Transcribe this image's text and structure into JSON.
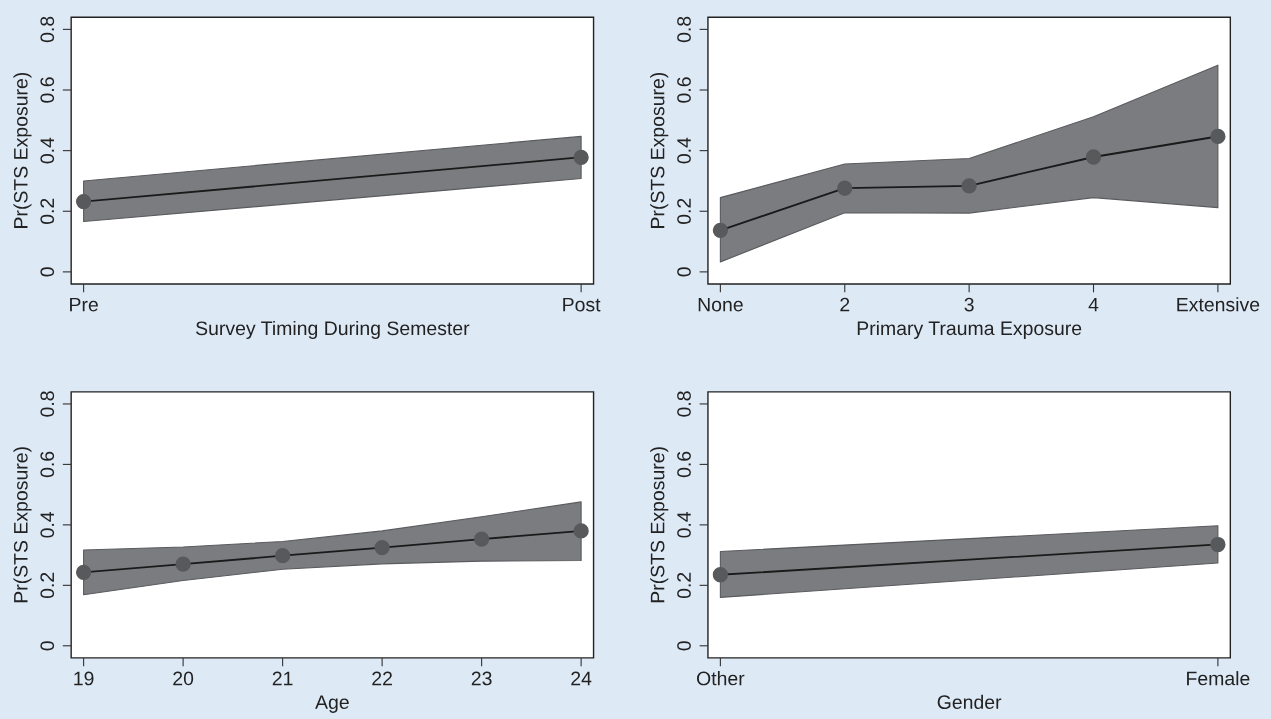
{
  "chart_data": [
    {
      "type": "line",
      "xlabel": "Survey Timing During Semester",
      "ylabel": "Pr(STS Exposure)",
      "categories": [
        "Pre",
        "Post"
      ],
      "ylim": [
        -0.04,
        0.84
      ],
      "yticks": [
        0,
        0.2,
        0.4,
        0.6,
        0.8
      ],
      "marker": "circle",
      "grid": false,
      "legend": false,
      "series": [
        {
          "color": "#58595b",
          "values": [
            0.232,
            0.378
          ],
          "lower": [
            0.166,
            0.308
          ],
          "upper": [
            0.3,
            0.447
          ]
        }
      ]
    },
    {
      "type": "line",
      "xlabel": "Primary Trauma Exposure",
      "ylabel": "Pr(STS Exposure)",
      "categories": [
        "None",
        "2",
        "3",
        "4",
        "Extensive"
      ],
      "ylim": [
        -0.04,
        0.84
      ],
      "yticks": [
        0,
        0.2,
        0.4,
        0.6,
        0.8
      ],
      "marker": "circle",
      "grid": false,
      "legend": false,
      "series": [
        {
          "color": "#58595b",
          "values": [
            0.137,
            0.276,
            0.284,
            0.379,
            0.447
          ],
          "lower": [
            0.033,
            0.195,
            0.194,
            0.245,
            0.212
          ],
          "upper": [
            0.245,
            0.356,
            0.374,
            0.512,
            0.682
          ]
        }
      ]
    },
    {
      "type": "line",
      "xlabel": "Age",
      "ylabel": "Pr(STS Exposure)",
      "x": [
        19,
        20,
        21,
        22,
        23,
        24
      ],
      "xlim": [
        18.875,
        24.125
      ],
      "xticks": [
        19,
        20,
        21,
        22,
        23,
        24
      ],
      "ylim": [
        -0.04,
        0.84
      ],
      "yticks": [
        0,
        0.2,
        0.4,
        0.6,
        0.8
      ],
      "marker": "circle",
      "grid": false,
      "legend": false,
      "series": [
        {
          "color": "#58595b",
          "values": [
            0.243,
            0.27,
            0.298,
            0.325,
            0.353,
            0.38
          ],
          "lower": [
            0.169,
            0.216,
            0.253,
            0.271,
            0.28,
            0.282
          ],
          "upper": [
            0.317,
            0.327,
            0.345,
            0.38,
            0.427,
            0.476
          ]
        }
      ]
    },
    {
      "type": "line",
      "xlabel": "Gender",
      "ylabel": "Pr(STS Exposure)",
      "categories": [
        "Other",
        "Female"
      ],
      "ylim": [
        -0.04,
        0.84
      ],
      "yticks": [
        0,
        0.2,
        0.4,
        0.6,
        0.8
      ],
      "marker": "circle",
      "grid": false,
      "legend": false,
      "series": [
        {
          "color": "#58595b",
          "values": [
            0.235,
            0.335
          ],
          "lower": [
            0.16,
            0.274
          ],
          "upper": [
            0.312,
            0.397
          ]
        }
      ]
    }
  ]
}
